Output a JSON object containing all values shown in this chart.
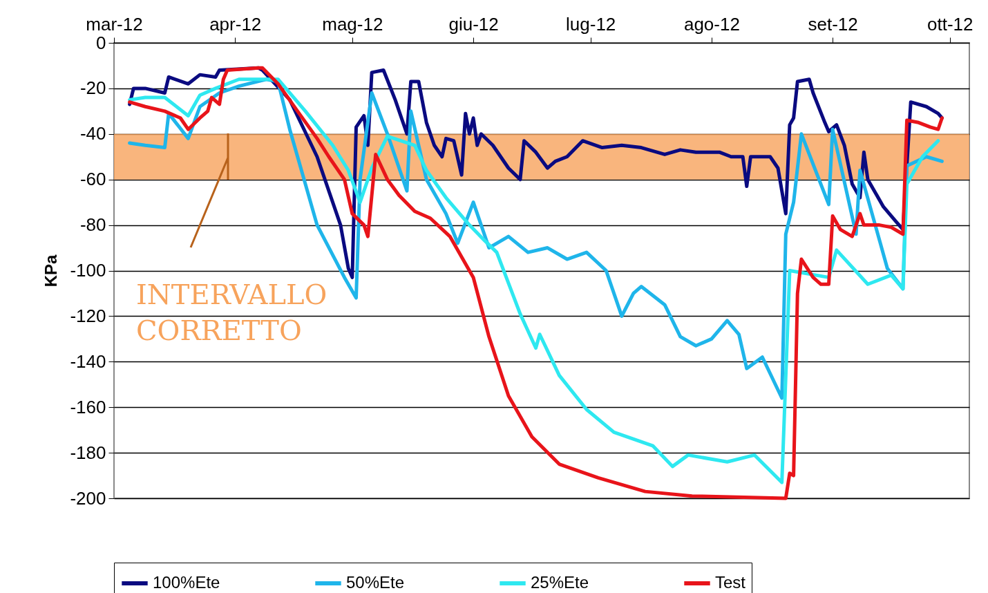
{
  "chart_data": {
    "type": "line",
    "ylabel": "KPa",
    "grid": "y",
    "legend": "bottom",
    "xlim": [
      "2012-03-01",
      "2012-10-06"
    ],
    "xticks": [
      {
        "value": "2012-03-01",
        "label": "mar-12"
      },
      {
        "value": "2012-04-01",
        "label": "apr-12"
      },
      {
        "value": "2012-05-01",
        "label": "mag-12"
      },
      {
        "value": "2012-06-01",
        "label": "giu-12"
      },
      {
        "value": "2012-07-01",
        "label": "lug-12"
      },
      {
        "value": "2012-08-01",
        "label": "ago-12"
      },
      {
        "value": "2012-09-01",
        "label": "set-12"
      },
      {
        "value": "2012-10-01",
        "label": "ott-12"
      }
    ],
    "ylim": [
      -200,
      0
    ],
    "yticks": [
      0,
      -20,
      -40,
      -60,
      -80,
      -100,
      -120,
      -140,
      -160,
      -180,
      -200
    ],
    "bands": [
      {
        "axis": "y",
        "from": -60,
        "to": -40,
        "label": "INTERVALLO CORRETTO",
        "color": "#f7a35c"
      }
    ],
    "series": [
      {
        "name": "100%Ete",
        "color": "#0a0a80",
        "x": [
          "2012-03-05",
          "2012-03-06",
          "2012-03-09",
          "2012-03-14",
          "2012-03-15",
          "2012-03-20",
          "2012-03-23",
          "2012-03-27",
          "2012-03-28",
          "2012-04-07",
          "2012-04-08",
          "2012-04-15",
          "2012-04-22",
          "2012-04-28",
          "2012-04-30",
          "2012-05-01",
          "2012-05-02",
          "2012-05-04",
          "2012-05-05",
          "2012-05-06",
          "2012-05-09",
          "2012-05-12",
          "2012-05-15",
          "2012-05-16",
          "2012-05-18",
          "2012-05-20",
          "2012-05-22",
          "2012-05-24",
          "2012-05-25",
          "2012-05-27",
          "2012-05-29",
          "2012-05-30",
          "2012-05-31",
          "2012-06-01",
          "2012-06-02",
          "2012-06-03",
          "2012-06-06",
          "2012-06-10",
          "2012-06-13",
          "2012-06-14",
          "2012-06-17",
          "2012-06-20",
          "2012-06-22",
          "2012-06-25",
          "2012-06-29",
          "2012-07-04",
          "2012-07-09",
          "2012-07-14",
          "2012-07-20",
          "2012-07-24",
          "2012-07-28",
          "2012-08-03",
          "2012-08-06",
          "2012-08-09",
          "2012-08-10",
          "2012-08-11",
          "2012-08-16",
          "2012-08-18",
          "2012-08-20",
          "2012-08-21",
          "2012-08-22",
          "2012-08-23",
          "2012-08-26",
          "2012-08-27",
          "2012-08-30",
          "2012-08-31",
          "2012-09-02",
          "2012-09-04",
          "2012-09-06",
          "2012-09-08",
          "2012-09-09",
          "2012-09-10",
          "2012-09-12",
          "2012-09-14",
          "2012-09-17",
          "2012-09-19",
          "2012-09-21",
          "2012-09-25",
          "2012-09-28",
          "2012-09-29"
        ],
        "values": [
          -27,
          -20,
          -20,
          -22,
          -15,
          -18,
          -14,
          -15,
          -12,
          -11,
          -12,
          -25,
          -50,
          -80,
          -99,
          -103,
          -37,
          -32,
          -45,
          -13,
          -12,
          -25,
          -40,
          -17,
          -17,
          -35,
          -45,
          -50,
          -42,
          -43,
          -58,
          -31,
          -40,
          -33,
          -45,
          -40,
          -45,
          -55,
          -60,
          -43,
          -48,
          -55,
          -52,
          -50,
          -43,
          -46,
          -45,
          -46,
          -49,
          -47,
          -48,
          -48,
          -50,
          -50,
          -63,
          -50,
          -50,
          -55,
          -75,
          -36,
          -33,
          -17,
          -16,
          -22,
          -35,
          -39,
          -36,
          -45,
          -62,
          -68,
          -48,
          -60,
          -66,
          -72,
          -78,
          -82,
          -26,
          -28,
          -31,
          -33
        ]
      },
      {
        "name": "50%Ete",
        "color": "#1fb5ea",
        "x": [
          "2012-03-05",
          "2012-03-09",
          "2012-03-14",
          "2012-03-15",
          "2012-03-20",
          "2012-03-23",
          "2012-03-28",
          "2012-04-02",
          "2012-04-09",
          "2012-04-12",
          "2012-04-15",
          "2012-04-22",
          "2012-04-29",
          "2012-05-02",
          "2012-05-03",
          "2012-05-06",
          "2012-05-10",
          "2012-05-15",
          "2012-05-16",
          "2012-05-20",
          "2012-05-25",
          "2012-05-28",
          "2012-06-01",
          "2012-06-05",
          "2012-06-10",
          "2012-06-15",
          "2012-06-20",
          "2012-06-25",
          "2012-06-30",
          "2012-07-05",
          "2012-07-09",
          "2012-07-12",
          "2012-07-14",
          "2012-07-20",
          "2012-07-24",
          "2012-07-28",
          "2012-08-01",
          "2012-08-05",
          "2012-08-08",
          "2012-08-10",
          "2012-08-14",
          "2012-08-19",
          "2012-08-20",
          "2012-08-22",
          "2012-08-24",
          "2012-08-31",
          "2012-09-01",
          "2012-09-07",
          "2012-09-08",
          "2012-09-15",
          "2012-09-19",
          "2012-09-20",
          "2012-09-25",
          "2012-09-29"
        ],
        "values": [
          -44,
          -45,
          -46,
          -31,
          -42,
          -28,
          -22,
          -19,
          -16,
          -17,
          -38,
          -80,
          -103,
          -112,
          -60,
          -22,
          -40,
          -65,
          -30,
          -60,
          -75,
          -88,
          -70,
          -90,
          -85,
          -92,
          -90,
          -95,
          -92,
          -100,
          -120,
          -110,
          -107,
          -115,
          -129,
          -133,
          -130,
          -122,
          -128,
          -143,
          -138,
          -156,
          -84,
          -70,
          -40,
          -71,
          -38,
          -84,
          -56,
          -99,
          -108,
          -54,
          -50,
          -52
        ]
      },
      {
        "name": "25%Ete",
        "color": "#2ee8f0",
        "x": [
          "2012-03-05",
          "2012-03-09",
          "2012-03-14",
          "2012-03-20",
          "2012-03-23",
          "2012-03-27",
          "2012-04-02",
          "2012-04-12",
          "2012-04-19",
          "2012-04-26",
          "2012-04-30",
          "2012-05-03",
          "2012-05-06",
          "2012-05-10",
          "2012-05-17",
          "2012-05-20",
          "2012-05-25",
          "2012-05-31",
          "2012-06-04",
          "2012-06-07",
          "2012-06-13",
          "2012-06-17",
          "2012-06-18",
          "2012-06-23",
          "2012-06-30",
          "2012-07-07",
          "2012-07-17",
          "2012-07-22",
          "2012-07-26",
          "2012-08-05",
          "2012-08-12",
          "2012-08-19",
          "2012-08-21",
          "2012-08-31",
          "2012-09-02",
          "2012-09-10",
          "2012-09-16",
          "2012-09-19",
          "2012-09-20",
          "2012-09-24",
          "2012-09-28"
        ],
        "values": [
          -25,
          -24,
          -24,
          -32,
          -23,
          -20,
          -16,
          -16,
          -30,
          -45,
          -56,
          -70,
          -55,
          -41,
          -45,
          -56,
          -68,
          -80,
          -87,
          -92,
          -119,
          -134,
          -128,
          -146,
          -161,
          -171,
          -177,
          -186,
          -181,
          -184,
          -181,
          -193,
          -100,
          -103,
          -91,
          -106,
          -102,
          -108,
          -62,
          -50,
          -43
        ]
      },
      {
        "name": "Test",
        "color": "#e8141a",
        "x": [
          "2012-03-05",
          "2012-03-09",
          "2012-03-14",
          "2012-03-18",
          "2012-03-20",
          "2012-03-23",
          "2012-03-25",
          "2012-03-26",
          "2012-03-28",
          "2012-03-29",
          "2012-03-30",
          "2012-04-07",
          "2012-04-08",
          "2012-04-12",
          "2012-04-17",
          "2012-04-22",
          "2012-04-25",
          "2012-04-29",
          "2012-05-01",
          "2012-05-04",
          "2012-05-05",
          "2012-05-07",
          "2012-05-10",
          "2012-05-13",
          "2012-05-17",
          "2012-05-21",
          "2012-05-26",
          "2012-06-01",
          "2012-06-05",
          "2012-06-10",
          "2012-06-16",
          "2012-06-23",
          "2012-07-03",
          "2012-07-15",
          "2012-07-27",
          "2012-08-20",
          "2012-08-21",
          "2012-08-22",
          "2012-08-23",
          "2012-08-24",
          "2012-08-27",
          "2012-08-29",
          "2012-08-31",
          "2012-09-01",
          "2012-09-03",
          "2012-09-06",
          "2012-09-08",
          "2012-09-09",
          "2012-09-13",
          "2012-09-16",
          "2012-09-19",
          "2012-09-20",
          "2012-09-23",
          "2012-09-26",
          "2012-09-28",
          "2012-09-29"
        ],
        "values": [
          -26,
          -28,
          -30,
          -33,
          -38,
          -33,
          -30,
          -24,
          -27,
          -16,
          -12,
          -11,
          -11,
          -18,
          -30,
          -42,
          -50,
          -60,
          -75,
          -80,
          -85,
          -49,
          -60,
          -67,
          -74,
          -77,
          -85,
          -103,
          -129,
          -155,
          -173,
          -185,
          -191,
          -197,
          -199,
          -200,
          -189,
          -190,
          -110,
          -95,
          -103,
          -106,
          -106,
          -76,
          -82,
          -85,
          -75,
          -80,
          -80,
          -81,
          -84,
          -34,
          -35,
          -37,
          -38,
          -33
        ]
      }
    ]
  }
}
